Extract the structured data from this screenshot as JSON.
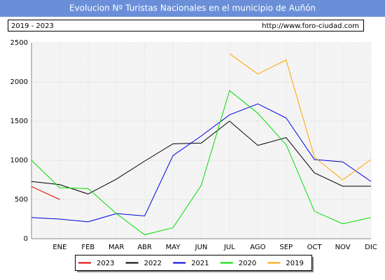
{
  "chart_data": {
    "type": "line",
    "title": "Evolucion Nº Turistas Nacionales en el municipio de Auñón",
    "subtitle": "2019 - 2023",
    "source": "http://www.foro-ciudad.com",
    "categories": [
      null,
      "ENE",
      "FEB",
      "MAR",
      "ABR",
      "MAY",
      "JUN",
      "JUL",
      "AGO",
      "SEP",
      "OCT",
      "NOV",
      "DIC"
    ],
    "series": [
      {
        "name": "2023",
        "color": "#dd0000",
        "values": [
          665,
          500,
          null,
          null,
          null,
          null,
          null,
          null,
          null,
          null,
          null,
          null,
          null
        ]
      },
      {
        "name": "2022",
        "color": "#000000",
        "values": [
          730,
          690,
          570,
          760,
          990,
          1210,
          1220,
          1500,
          1190,
          1290,
          840,
          670,
          670
        ]
      },
      {
        "name": "2021",
        "color": "#0000dd",
        "values": [
          270,
          250,
          215,
          320,
          290,
          1060,
          1310,
          1580,
          1720,
          1540,
          1010,
          980,
          730
        ]
      },
      {
        "name": "2020",
        "color": "#00dd00",
        "values": [
          1000,
          650,
          640,
          320,
          50,
          140,
          680,
          1890,
          1600,
          1200,
          350,
          190,
          270
        ]
      },
      {
        "name": "2019",
        "color": "#ffa500",
        "values": [
          null,
          null,
          null,
          null,
          null,
          null,
          null,
          2360,
          2100,
          2280,
          1040,
          750,
          1010
        ]
      }
    ],
    "ylim": [
      0,
      2500
    ],
    "yticks": [
      0,
      500,
      1000,
      1500,
      2000,
      2500
    ],
    "grid": true
  }
}
